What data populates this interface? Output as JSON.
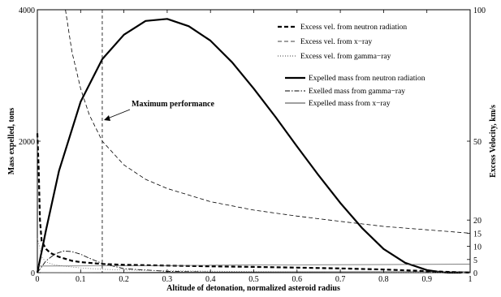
{
  "chart_data": {
    "type": "line",
    "xlabel": "Altitude of detonation, normalized asteroid radius",
    "ylabel_left": "Mass expelled, tons",
    "ylabel_right": "Excess Velocity, km/s",
    "xlim": [
      0,
      1
    ],
    "ylim_left": [
      0,
      4000
    ],
    "ylim_right": [
      0,
      100
    ],
    "x_ticks": [
      "0",
      "0.1",
      "0.2",
      "0.3",
      "0.4",
      "0.5",
      "0.6",
      "0.7",
      "0.8",
      "0.9",
      "1"
    ],
    "y_left_ticks": [
      "0",
      "2000",
      "4000"
    ],
    "y_right_ticks": [
      "0",
      "5",
      "10",
      "15",
      "20",
      "50",
      "100"
    ],
    "y_right_tick_values": [
      0,
      5,
      10,
      15,
      20,
      50,
      100
    ],
    "grid": false,
    "annotation": {
      "text": "Maximum performance",
      "x": 0.15
    },
    "legend_velocity": [
      "Excess vel. from neutron radiation",
      "Excess vel. from x−ray",
      "Excess vel. from gamma−ray"
    ],
    "legend_mass": [
      "Expelled mass from neutron radiation",
      "Exelled mass from gamma−ray",
      "Expelled mass from x−ray"
    ],
    "series": [
      {
        "axis": "left",
        "style": "solid-thick",
        "x": [
          0,
          0.02,
          0.05,
          0.1,
          0.15,
          0.2,
          0.25,
          0.3,
          0.35,
          0.4,
          0.45,
          0.5,
          0.55,
          0.6,
          0.65,
          0.7,
          0.75,
          0.8,
          0.85,
          0.9,
          0.93,
          0.95,
          0.97,
          0.98
        ],
        "y": [
          0,
          650,
          1550,
          2600,
          3250,
          3620,
          3830,
          3860,
          3750,
          3530,
          3200,
          2800,
          2370,
          1920,
          1480,
          1060,
          680,
          360,
          150,
          40,
          10,
          0,
          0,
          0
        ]
      },
      {
        "axis": "left",
        "style": "dashdot",
        "x": [
          0,
          0.02,
          0.04,
          0.06,
          0.08,
          0.1,
          0.12,
          0.15,
          0.2,
          0.3,
          0.4,
          0.5,
          0.6
        ],
        "y": [
          0,
          180,
          280,
          330,
          320,
          280,
          220,
          140,
          60,
          20,
          8,
          3,
          0
        ]
      },
      {
        "axis": "left",
        "style": "solid-thin",
        "x": [
          0,
          0.2,
          0.4,
          0.6,
          0.8,
          1.0
        ],
        "y": [
          0,
          5,
          10,
          12,
          15,
          15
        ]
      },
      {
        "axis": "right",
        "style": "dashed-thick",
        "x": [
          0,
          0.003,
          0.006,
          0.01,
          0.02,
          0.03,
          0.05,
          0.08,
          0.1,
          0.15,
          0.2,
          0.3,
          0.4,
          0.5,
          0.6,
          0.7,
          0.8,
          0.9,
          1.0
        ],
        "y": [
          53,
          40,
          20,
          12,
          9,
          7.5,
          6,
          4.5,
          4,
          3.3,
          3,
          2.7,
          2.4,
          2.2,
          1.9,
          1.6,
          1.2,
          0.6,
          0
        ]
      },
      {
        "axis": "right",
        "style": "dashed-thin",
        "x": [
          0.065,
          0.08,
          0.1,
          0.12,
          0.15,
          0.2,
          0.25,
          0.3,
          0.4,
          0.5,
          0.6,
          0.7,
          0.8,
          0.9,
          1.0
        ],
        "y": [
          100,
          84,
          70,
          60,
          50,
          41,
          35.5,
          32,
          27,
          23.8,
          21.5,
          19.5,
          17.6,
          16.3,
          15
        ]
      },
      {
        "axis": "right",
        "style": "dotted",
        "x": [
          0,
          0.005,
          0.01,
          0.02,
          0.04,
          0.06,
          0.1,
          0.15,
          0.2,
          0.3,
          0.5,
          0.7,
          1.0
        ],
        "y": [
          13,
          10,
          6,
          4,
          3,
          2.5,
          1.8,
          1.3,
          1,
          0.7,
          0.4,
          0.2,
          0
        ]
      },
      {
        "axis": "right",
        "style": "solid-thin",
        "x": [
          0,
          0.2,
          0.4,
          0.6,
          0.8,
          1.0
        ],
        "y": [
          2.5,
          2.6,
          2.8,
          3.0,
          3.1,
          3.2
        ]
      }
    ]
  }
}
